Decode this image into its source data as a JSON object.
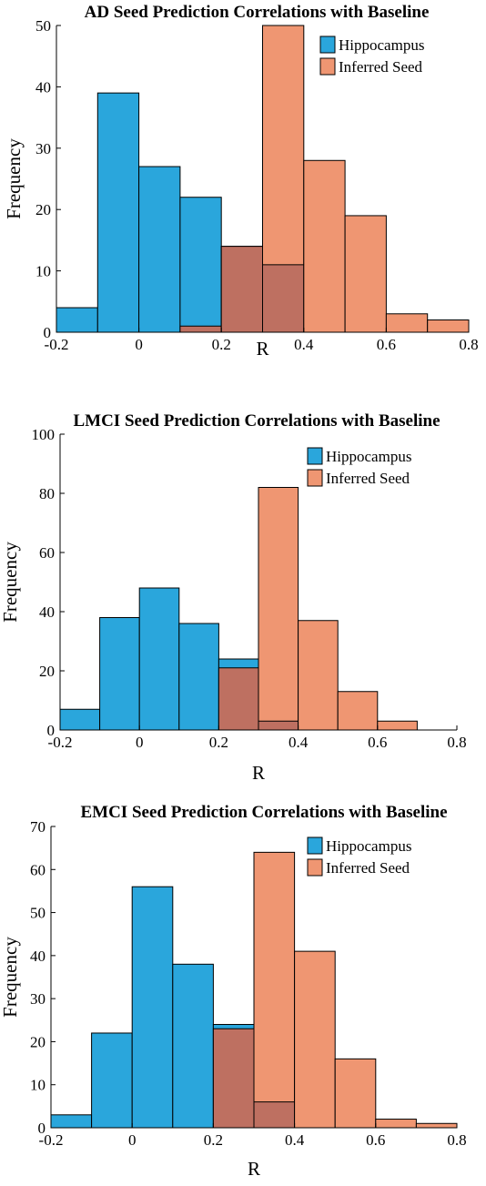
{
  "colors": {
    "hippocampus": "#2AA6DC",
    "inferred_seed": "#EF9672",
    "overlap": "#BE7061",
    "bar_edge": "#000000",
    "axis": "#000000"
  },
  "chart_data": [
    {
      "type": "bar",
      "title": "AD Seed Prediction Correlations with Baseline",
      "xlabel": "R",
      "ylabel": "Frequency",
      "xlim": [
        -0.2,
        0.8
      ],
      "ylim": [
        0,
        50
      ],
      "xticks": [
        "-0.2",
        "0",
        "0.2",
        "0.4",
        "0.6",
        "0.8"
      ],
      "yticks": [
        "0",
        "10",
        "20",
        "30",
        "40",
        "50"
      ],
      "bin_edges": [
        -0.2,
        -0.1,
        0.0,
        0.1,
        0.2,
        0.3,
        0.4,
        0.5,
        0.6,
        0.7,
        0.8
      ],
      "legend_position": "top-right",
      "series": [
        {
          "name": "Hippocampus",
          "values": [
            4,
            39,
            27,
            22,
            14,
            11,
            0,
            0,
            0,
            0
          ]
        },
        {
          "name": "Inferred Seed",
          "values": [
            0,
            0,
            0,
            1,
            14,
            50,
            28,
            19,
            3,
            2
          ]
        }
      ]
    },
    {
      "type": "bar",
      "title": "LMCI Seed Prediction Correlations with Baseline",
      "xlabel": "R",
      "ylabel": "Frequency",
      "xlim": [
        -0.2,
        0.8
      ],
      "ylim": [
        0,
        100
      ],
      "xticks": [
        "-0.2",
        "0",
        "0.2",
        "0.4",
        "0.6",
        "0.8"
      ],
      "yticks": [
        "0",
        "20",
        "40",
        "60",
        "80",
        "100"
      ],
      "bin_edges": [
        -0.2,
        -0.1,
        0.0,
        0.1,
        0.2,
        0.3,
        0.4,
        0.5,
        0.6,
        0.7,
        0.8
      ],
      "legend_position": "top-right",
      "series": [
        {
          "name": "Hippocampus",
          "values": [
            7,
            38,
            48,
            36,
            24,
            3,
            0,
            0,
            0,
            0
          ]
        },
        {
          "name": "Inferred Seed",
          "values": [
            0,
            0,
            0,
            0,
            21,
            82,
            37,
            13,
            3,
            0
          ]
        }
      ]
    },
    {
      "type": "bar",
      "title": "EMCI Seed Prediction Correlations with Baseline",
      "xlabel": "R",
      "ylabel": "Frequency",
      "xlim": [
        -0.2,
        0.8
      ],
      "ylim": [
        0,
        70
      ],
      "xticks": [
        "-0.2",
        "0",
        "0.2",
        "0.4",
        "0.6",
        "0.8"
      ],
      "yticks": [
        "0",
        "10",
        "20",
        "30",
        "40",
        "50",
        "60",
        "70"
      ],
      "bin_edges": [
        -0.2,
        -0.1,
        0.0,
        0.1,
        0.2,
        0.3,
        0.4,
        0.5,
        0.6,
        0.7,
        0.8
      ],
      "legend_position": "top-center",
      "series": [
        {
          "name": "Hippocampus",
          "values": [
            3,
            22,
            56,
            38,
            24,
            6,
            0,
            0,
            0,
            0
          ]
        },
        {
          "name": "Inferred Seed",
          "values": [
            0,
            0,
            0,
            0,
            23,
            64,
            41,
            16,
            2,
            1
          ]
        }
      ]
    }
  ]
}
